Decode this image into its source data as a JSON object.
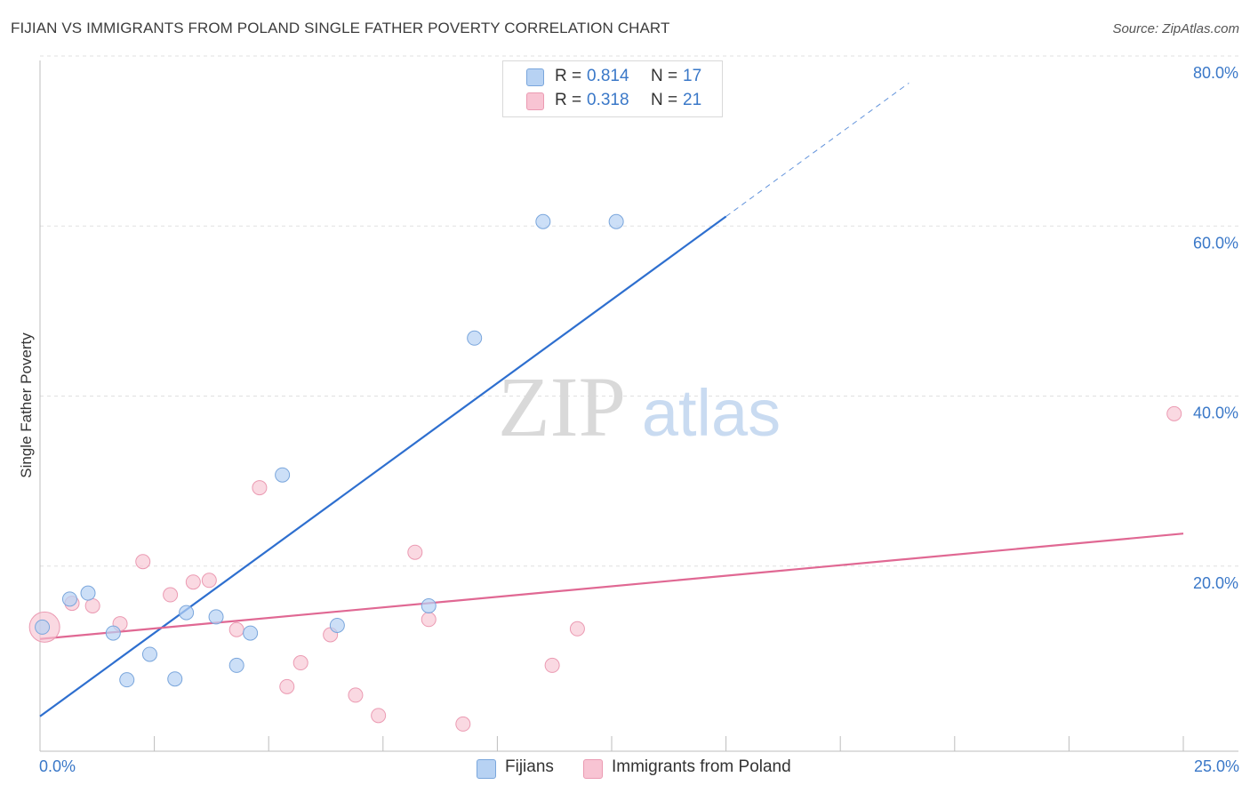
{
  "title": "FIJIAN VS IMMIGRANTS FROM POLAND SINGLE FATHER POVERTY CORRELATION CHART",
  "source": "Source: ZipAtlas.com",
  "watermark": {
    "zip": "ZIP",
    "atlas": "atlas"
  },
  "legend_top": [
    {
      "r_label": "R =",
      "r_value": "0.814",
      "n_label": "N =",
      "n_value": "17"
    },
    {
      "r_label": "R =",
      "r_value": "0.318",
      "n_label": "N =",
      "n_value": "21"
    }
  ],
  "legend_bottom": [
    "Fijians",
    "Immigrants from Poland"
  ],
  "x_tick_labels": {
    "min": "0.0%",
    "max": "25.0%"
  },
  "colors": {
    "fijians_fill": "#b7d2f3",
    "fijians_stroke": "#7aa6dc",
    "fijians_line": "#2e6fcf",
    "poland_fill": "#f8c4d3",
    "poland_stroke": "#eb9ab2",
    "poland_line": "#e06893",
    "axis_text": "#3a78c8",
    "grid": "#e0e0e0"
  },
  "chart_data": {
    "type": "scatter",
    "title": "FIJIAN VS IMMIGRANTS FROM POLAND SINGLE FATHER POVERTY CORRELATION CHART",
    "xlabel": "",
    "ylabel": "Single Father Poverty",
    "xlim": [
      0,
      25
    ],
    "ylim": [
      0,
      80
    ],
    "x_unit": "%",
    "y_unit": "%",
    "y_ticks": [
      {
        "value": 20,
        "label": "20.0%"
      },
      {
        "value": 40,
        "label": "40.0%"
      },
      {
        "value": 60,
        "label": "60.0%"
      },
      {
        "value": 80,
        "label": "80.0%"
      }
    ],
    "x_ticks": [
      0,
      2.5,
      5,
      7.5,
      10,
      12.5,
      15,
      17.5,
      20,
      22.5,
      25
    ],
    "grid": true,
    "legend_position": "top-center",
    "series": [
      {
        "name": "Fijians",
        "r": 0.814,
        "n": 17,
        "points": [
          [
            0.05,
            14.6
          ],
          [
            0.65,
            17.9
          ],
          [
            1.05,
            18.6
          ],
          [
            1.6,
            13.9
          ],
          [
            1.9,
            8.4
          ],
          [
            2.4,
            11.4
          ],
          [
            2.95,
            8.5
          ],
          [
            3.2,
            16.3
          ],
          [
            3.85,
            15.8
          ],
          [
            4.3,
            10.1
          ],
          [
            4.6,
            13.9
          ],
          [
            5.3,
            32.5
          ],
          [
            6.5,
            14.8
          ],
          [
            8.5,
            17.1
          ],
          [
            9.5,
            48.6
          ],
          [
            11.0,
            62.3
          ],
          [
            12.6,
            62.3
          ]
        ],
        "trend": {
          "x0": 0.0,
          "y0": 4.1,
          "x1": 15.0,
          "y1": 62.9,
          "dash_to_x": 19.0,
          "dash_to_y": 78.6
        }
      },
      {
        "name": "Immigrants from Poland",
        "r": 0.318,
        "n": 21,
        "points": [
          [
            0.1,
            14.6
          ],
          [
            0.7,
            17.4
          ],
          [
            1.15,
            17.1
          ],
          [
            1.75,
            15.0
          ],
          [
            2.25,
            22.3
          ],
          [
            2.85,
            18.4
          ],
          [
            3.35,
            19.9
          ],
          [
            3.7,
            20.1
          ],
          [
            4.3,
            14.3
          ],
          [
            4.8,
            31.0
          ],
          [
            5.4,
            7.6
          ],
          [
            5.7,
            10.4
          ],
          [
            6.35,
            13.7
          ],
          [
            6.9,
            6.6
          ],
          [
            7.4,
            4.2
          ],
          [
            8.2,
            23.4
          ],
          [
            8.5,
            15.5
          ],
          [
            9.25,
            3.2
          ],
          [
            11.2,
            10.1
          ],
          [
            11.75,
            14.4
          ],
          [
            24.8,
            39.7
          ]
        ],
        "trend": {
          "x0": 0.0,
          "y0": 13.2,
          "x1": 25.0,
          "y1": 25.6
        }
      }
    ]
  }
}
